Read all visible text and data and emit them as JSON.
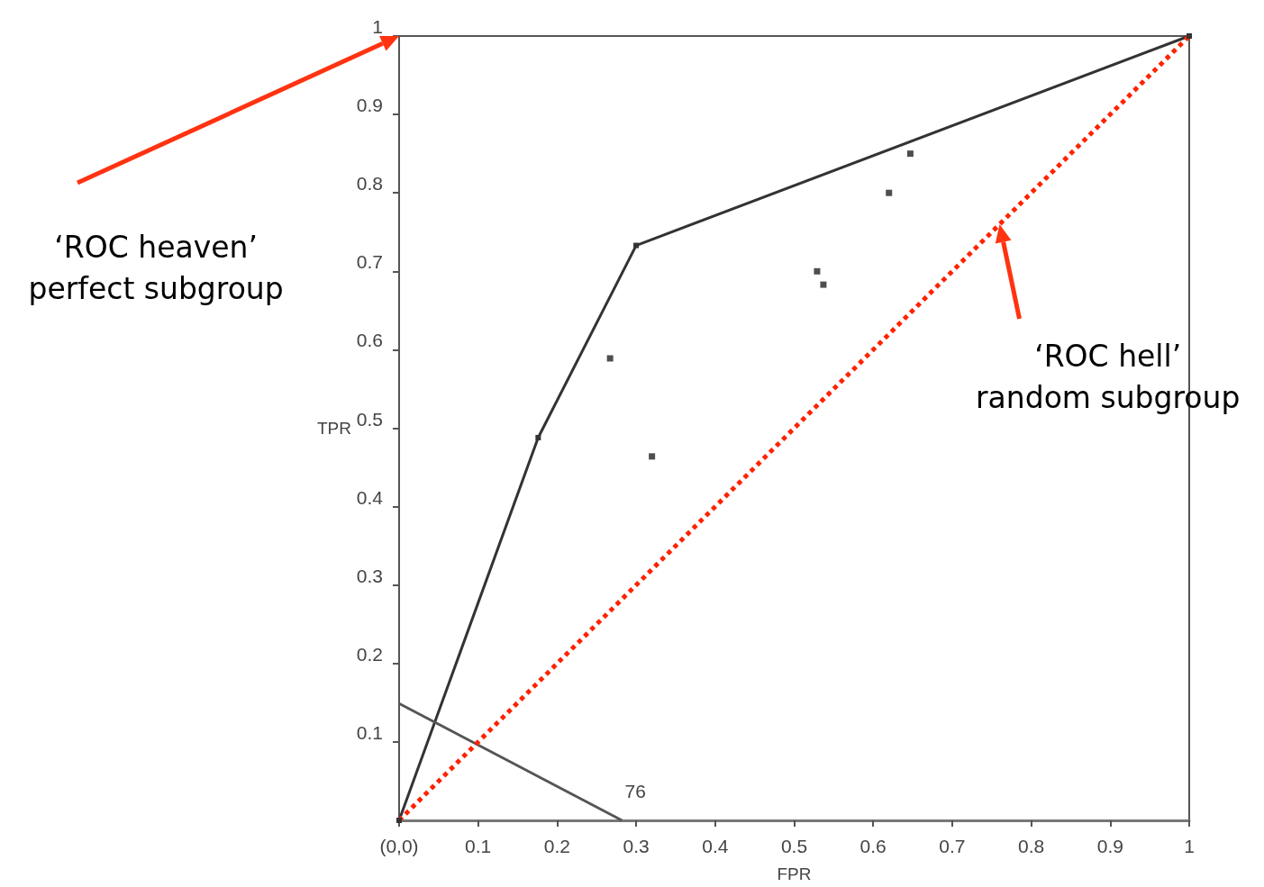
{
  "chart_data": {
    "type": "line",
    "xlabel": "FPR",
    "ylabel": "TPR",
    "xlim": [
      0,
      1
    ],
    "ylim": [
      0,
      1
    ],
    "xticks": [
      {
        "value": 0,
        "label": "(0,0)"
      },
      0.1,
      0.2,
      0.3,
      0.4,
      0.5,
      0.6,
      0.7,
      0.8,
      0.9,
      1
    ],
    "yticks": [
      0.1,
      0.2,
      0.3,
      0.4,
      0.5,
      0.6,
      0.7,
      0.8,
      0.9,
      1
    ],
    "grid": false,
    "series": [
      {
        "color": "#333333",
        "x": [
          0,
          0.176,
          0.3,
          1
        ],
        "values": [
          0,
          0.488,
          0.733,
          1
        ],
        "marker": "square",
        "line_style": "solid"
      },
      {
        "color": "#555555",
        "x": [
          0,
          0.282
        ],
        "values": [
          0.149,
          0
        ],
        "marker": "none",
        "line_style": "solid"
      },
      {
        "color": "#ff2200",
        "x": [
          0,
          1
        ],
        "values": [
          0,
          1
        ],
        "marker": "none",
        "line_style": "dotted"
      },
      {
        "type": "scatter",
        "color": "#222222",
        "x": [
          0.267,
          0.32,
          0.529,
          0.537,
          0.62,
          0.647
        ],
        "values": [
          0.589,
          0.464,
          0.7,
          0.683,
          0.8,
          0.85
        ],
        "marker": "square"
      }
    ],
    "annotations": [
      "76",
      "‘ROC heaven’\nperfect subgroup",
      "‘ROC hell’\nrandom subgroup"
    ]
  }
}
